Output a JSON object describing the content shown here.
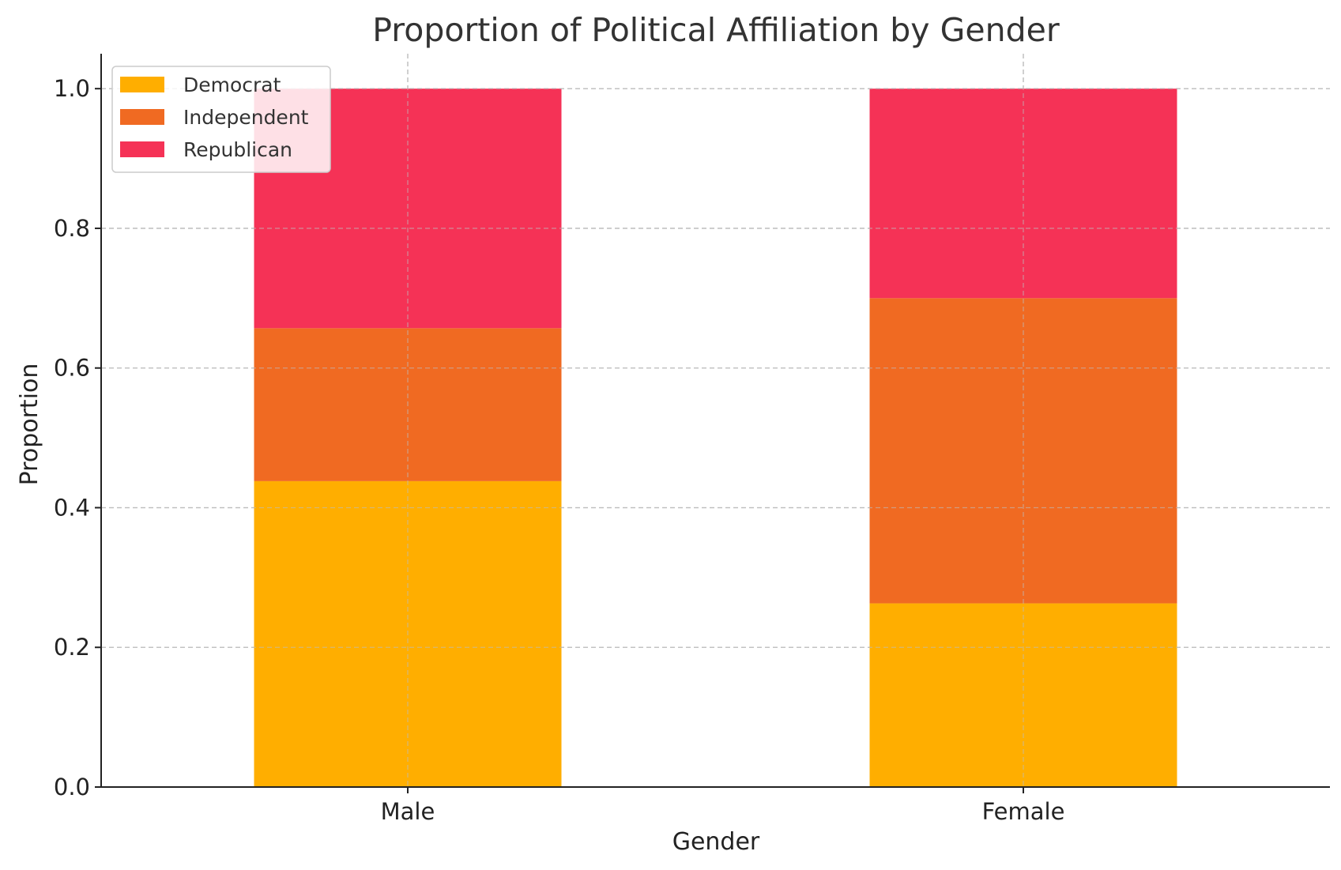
{
  "chart_data": {
    "type": "bar",
    "stacked": true,
    "title": "Proportion of Political Affiliation by Gender",
    "xlabel": "Gender",
    "ylabel": "Proportion",
    "categories": [
      "Male",
      "Female"
    ],
    "series": [
      {
        "name": "Democrat",
        "values": [
          0.438,
          0.263
        ],
        "color": "#ffae00"
      },
      {
        "name": "Independent",
        "values": [
          0.219,
          0.437
        ],
        "color": "#f06a22"
      },
      {
        "name": "Republican",
        "values": [
          0.343,
          0.3
        ],
        "color": "#f53256"
      }
    ],
    "ylim": [
      0,
      1.05
    ],
    "yticks": [
      "0.0",
      "0.2",
      "0.4",
      "0.6",
      "0.8",
      "1.0"
    ],
    "grid": true,
    "legend_position": "upper-left"
  }
}
